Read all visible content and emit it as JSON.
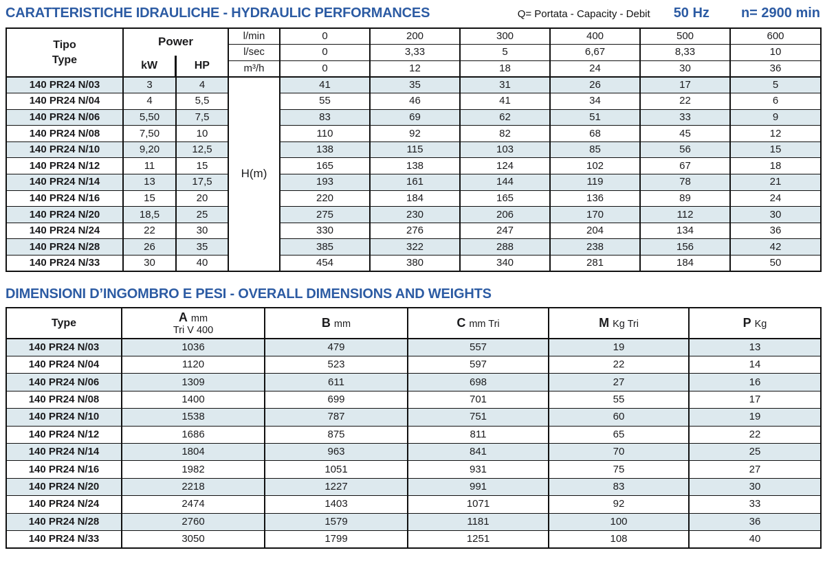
{
  "colors": {
    "accent_blue": "#2c5ba3",
    "stripe_blue": "#dde9ee",
    "border_black": "#101010"
  },
  "page": {
    "title_hydraulic": "CARATTERISTICHE IDRAULICHE - HYDRAULIC PERFORMANCES",
    "q_note": "Q= Portata - Capacity - Debit",
    "frequency": "50 Hz",
    "speed": "n= 2900 min",
    "title_dimensions": "DIMENSIONI D’INGOMBRO E PESI - OVERALL DIMENSIONS AND WEIGHTS"
  },
  "hydraulic_table": {
    "header": {
      "tipo_label": "Tipo",
      "type_label": "Type",
      "power_label": "Power",
      "kw_label": "kW",
      "hp_label": "HP"
    },
    "flow": [
      {
        "unit": "l/min",
        "values": [
          "0",
          "200",
          "300",
          "400",
          "500",
          "600"
        ]
      },
      {
        "unit": "l/sec",
        "values": [
          "0",
          "3,33",
          "5",
          "6,67",
          "8,33",
          "10"
        ]
      },
      {
        "unit": "m³/h",
        "values": [
          "0",
          "12",
          "18",
          "24",
          "30",
          "36"
        ]
      }
    ],
    "head_unit": "H(m)",
    "rows": [
      {
        "type": "140 PR24 N/03",
        "kw": "3",
        "hp": "4",
        "h": [
          "41",
          "35",
          "31",
          "26",
          "17",
          "5"
        ]
      },
      {
        "type": "140 PR24 N/04",
        "kw": "4",
        "hp": "5,5",
        "h": [
          "55",
          "46",
          "41",
          "34",
          "22",
          "6"
        ]
      },
      {
        "type": "140 PR24 N/06",
        "kw": "5,50",
        "hp": "7,5",
        "h": [
          "83",
          "69",
          "62",
          "51",
          "33",
          "9"
        ]
      },
      {
        "type": "140 PR24 N/08",
        "kw": "7,50",
        "hp": "10",
        "h": [
          "110",
          "92",
          "82",
          "68",
          "45",
          "12"
        ]
      },
      {
        "type": "140 PR24 N/10",
        "kw": "9,20",
        "hp": "12,5",
        "h": [
          "138",
          "115",
          "103",
          "85",
          "56",
          "15"
        ]
      },
      {
        "type": "140 PR24 N/12",
        "kw": "11",
        "hp": "15",
        "h": [
          "165",
          "138",
          "124",
          "102",
          "67",
          "18"
        ]
      },
      {
        "type": "140 PR24 N/14",
        "kw": "13",
        "hp": "17,5",
        "h": [
          "193",
          "161",
          "144",
          "119",
          "78",
          "21"
        ]
      },
      {
        "type": "140 PR24 N/16",
        "kw": "15",
        "hp": "20",
        "h": [
          "220",
          "184",
          "165",
          "136",
          "89",
          "24"
        ]
      },
      {
        "type": "140 PR24 N/20",
        "kw": "18,5",
        "hp": "25",
        "h": [
          "275",
          "230",
          "206",
          "170",
          "112",
          "30"
        ]
      },
      {
        "type": "140 PR24 N/24",
        "kw": "22",
        "hp": "30",
        "h": [
          "330",
          "276",
          "247",
          "204",
          "134",
          "36"
        ]
      },
      {
        "type": "140 PR24 N/28",
        "kw": "26",
        "hp": "35",
        "h": [
          "385",
          "322",
          "288",
          "238",
          "156",
          "42"
        ]
      },
      {
        "type": "140 PR24 N/33",
        "kw": "30",
        "hp": "40",
        "h": [
          "454",
          "380",
          "340",
          "281",
          "184",
          "50"
        ]
      }
    ]
  },
  "dimensions_table": {
    "header": {
      "type_label": "Type",
      "cols": [
        {
          "letter": "A",
          "unit": "mm",
          "sub": "Tri V 400"
        },
        {
          "letter": "B",
          "unit": "mm",
          "sub": ""
        },
        {
          "letter": "C",
          "unit": "mm Tri",
          "sub": ""
        },
        {
          "letter": "M",
          "unit": "Kg Tri",
          "sub": ""
        },
        {
          "letter": "P",
          "unit": "Kg",
          "sub": ""
        }
      ]
    },
    "rows": [
      {
        "type": "140 PR24 N/03",
        "values": [
          "1036",
          "479",
          "557",
          "19",
          "13"
        ]
      },
      {
        "type": "140 PR24 N/04",
        "values": [
          "1120",
          "523",
          "597",
          "22",
          "14"
        ]
      },
      {
        "type": "140 PR24 N/06",
        "values": [
          "1309",
          "611",
          "698",
          "27",
          "16"
        ]
      },
      {
        "type": "140 PR24 N/08",
        "values": [
          "1400",
          "699",
          "701",
          "55",
          "17"
        ]
      },
      {
        "type": "140 PR24 N/10",
        "values": [
          "1538",
          "787",
          "751",
          "60",
          "19"
        ]
      },
      {
        "type": "140 PR24 N/12",
        "values": [
          "1686",
          "875",
          "811",
          "65",
          "22"
        ]
      },
      {
        "type": "140 PR24 N/14",
        "values": [
          "1804",
          "963",
          "841",
          "70",
          "25"
        ]
      },
      {
        "type": "140 PR24 N/16",
        "values": [
          "1982",
          "1051",
          "931",
          "75",
          "27"
        ]
      },
      {
        "type": "140 PR24 N/20",
        "values": [
          "2218",
          "1227",
          "991",
          "83",
          "30"
        ]
      },
      {
        "type": "140 PR24 N/24",
        "values": [
          "2474",
          "1403",
          "1071",
          "92",
          "33"
        ]
      },
      {
        "type": "140 PR24 N/28",
        "values": [
          "2760",
          "1579",
          "1181",
          "100",
          "36"
        ]
      },
      {
        "type": "140 PR24 N/33",
        "values": [
          "3050",
          "1799",
          "1251",
          "108",
          "40"
        ]
      }
    ]
  }
}
